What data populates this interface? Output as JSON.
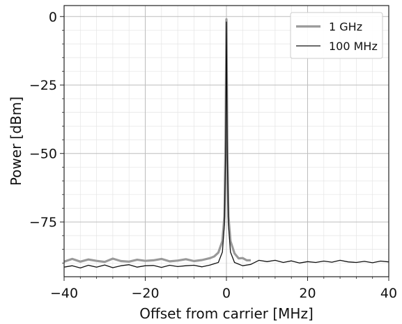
{
  "chart_data": {
    "type": "line",
    "title": "",
    "xlabel": "Offset from carrier [MHz]",
    "ylabel": "Power [dBm]",
    "xlim": [
      -40,
      40
    ],
    "ylim": [
      -95,
      4
    ],
    "x_ticks": [
      -40,
      -20,
      0,
      20,
      40
    ],
    "x_tick_labels": [
      "−40",
      "−20",
      "0",
      "20",
      "40"
    ],
    "y_ticks": [
      0,
      -25,
      -50,
      -75
    ],
    "y_tick_labels": [
      "0",
      "−25",
      "−50",
      "−75"
    ],
    "grid": true,
    "minor_grid": true,
    "legend_position": "top-right",
    "series": [
      {
        "name": "1 GHz",
        "color": "#999999",
        "linewidth": "thick",
        "x": [
          -40,
          -38,
          -36,
          -34,
          -32,
          -30,
          -28,
          -26,
          -24,
          -22,
          -20,
          -18,
          -16,
          -14,
          -12,
          -10,
          -8,
          -6,
          -4,
          -3,
          -2,
          -1,
          -0.5,
          -0.2,
          0,
          0.2,
          0.5,
          1,
          2,
          3,
          4,
          5,
          6
        ],
        "y": [
          -89.5,
          -88.5,
          -89.5,
          -88.7,
          -89.2,
          -89.6,
          -88.4,
          -89.3,
          -89.5,
          -88.8,
          -89.2,
          -89.0,
          -88.5,
          -89.4,
          -89.1,
          -88.6,
          -89.3,
          -88.9,
          -88.2,
          -87.6,
          -86.2,
          -82.0,
          -73.0,
          -45.0,
          -1.0,
          -45.0,
          -73.0,
          -82.0,
          -86.5,
          -88.3,
          -88.2,
          -89.0,
          -89.0
        ]
      },
      {
        "name": "100 MHz",
        "color": "#111111",
        "linewidth": "thin",
        "x": [
          -40,
          -38,
          -36,
          -34,
          -32,
          -30,
          -28,
          -26,
          -24,
          -22,
          -20,
          -18,
          -16,
          -14,
          -12,
          -10,
          -8,
          -6,
          -4,
          -2,
          -1,
          -0.5,
          -0.2,
          0,
          0.2,
          0.5,
          1,
          2,
          4,
          6,
          8,
          10,
          12,
          14,
          16,
          18,
          20,
          22,
          24,
          26,
          28,
          30,
          32,
          34,
          36,
          38,
          40
        ],
        "y": [
          -91.5,
          -91.0,
          -91.8,
          -90.8,
          -91.5,
          -90.7,
          -91.7,
          -91.0,
          -90.6,
          -91.5,
          -91.0,
          -90.9,
          -91.6,
          -90.8,
          -91.3,
          -91.0,
          -90.8,
          -91.4,
          -90.7,
          -89.8,
          -86.0,
          -76.0,
          -50.0,
          -2.0,
          -50.0,
          -76.0,
          -86.0,
          -89.8,
          -91.0,
          -90.5,
          -89.0,
          -89.5,
          -89.0,
          -89.8,
          -89.2,
          -90.0,
          -89.5,
          -89.8,
          -89.3,
          -89.7,
          -89.0,
          -89.6,
          -89.8,
          -89.4,
          -89.9,
          -89.3,
          -89.6
        ]
      }
    ]
  }
}
